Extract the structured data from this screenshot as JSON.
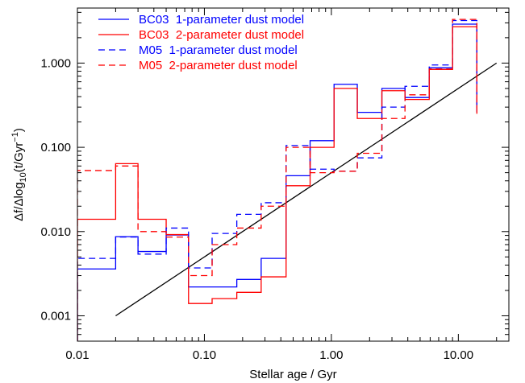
{
  "chart_data": {
    "type": "line",
    "xlabel": "Stellar age / Gyr",
    "ylabel": "Δf/Δlog10(t/Gyr−1)",
    "ylabel_parts": {
      "pre": "Δf/Δlog",
      "sub": "10",
      "mid": "(t/Gyr",
      "sup": "−1",
      "post": ")"
    },
    "xscale": "log",
    "yscale": "log",
    "xlim": [
      0.01,
      25
    ],
    "ylim": [
      0.0005,
      4.5
    ],
    "x_ticks": [
      {
        "value": 0.01,
        "label": "0.01"
      },
      {
        "value": 0.1,
        "label": "0.10"
      },
      {
        "value": 1,
        "label": "1.00"
      },
      {
        "value": 10,
        "label": "10.00"
      }
    ],
    "y_ticks": [
      {
        "value": 0.001,
        "label": "0.001"
      },
      {
        "value": 0.01,
        "label": "0.010"
      },
      {
        "value": 0.1,
        "label": "0.100"
      },
      {
        "value": 1,
        "label": "1.000"
      }
    ],
    "grid": false,
    "legend_position": "top-left",
    "bin_edges": [
      0.01,
      0.02,
      0.03,
      0.05,
      0.075,
      0.115,
      0.18,
      0.28,
      0.44,
      0.68,
      1.05,
      1.6,
      2.5,
      3.8,
      5.9,
      9.0,
      14.0
    ],
    "series": [
      {
        "name": "BC03  1-parameter dust model",
        "color": "#0000ff",
        "dash": "solid",
        "values": [
          0.0036,
          0.0087,
          0.0058,
          0.0091,
          0.0022,
          0.0022,
          0.0027,
          0.0048,
          0.046,
          0.12,
          0.56,
          0.26,
          0.5,
          0.39,
          0.88,
          2.9
        ]
      },
      {
        "name": "BC03  2-parameter dust model",
        "color": "#ff0000",
        "dash": "solid",
        "values": [
          0.014,
          0.064,
          0.014,
          0.0092,
          0.0014,
          0.0016,
          0.0019,
          0.0029,
          0.035,
          0.1,
          0.5,
          0.22,
          0.47,
          0.37,
          0.84,
          2.7
        ]
      },
      {
        "name": "M05  1-parameter dust model",
        "color": "#0000ff",
        "dash": "dashed",
        "values": [
          0.0048,
          0.0086,
          0.0054,
          0.011,
          0.0037,
          0.0095,
          0.016,
          0.022,
          0.105,
          0.055,
          0.052,
          0.075,
          0.3,
          0.53,
          0.95,
          3.2
        ]
      },
      {
        "name": "M05  2-parameter dust model",
        "color": "#ff0000",
        "dash": "dashed",
        "values": [
          0.053,
          0.06,
          0.01,
          0.0086,
          0.003,
          0.007,
          0.011,
          0.02,
          0.1,
          0.05,
          0.052,
          0.085,
          0.22,
          0.42,
          0.85,
          3.3
        ]
      }
    ],
    "reference_line": {
      "color": "#000000",
      "x": [
        0.02,
        20
      ],
      "y": [
        0.001,
        1.0
      ]
    }
  }
}
